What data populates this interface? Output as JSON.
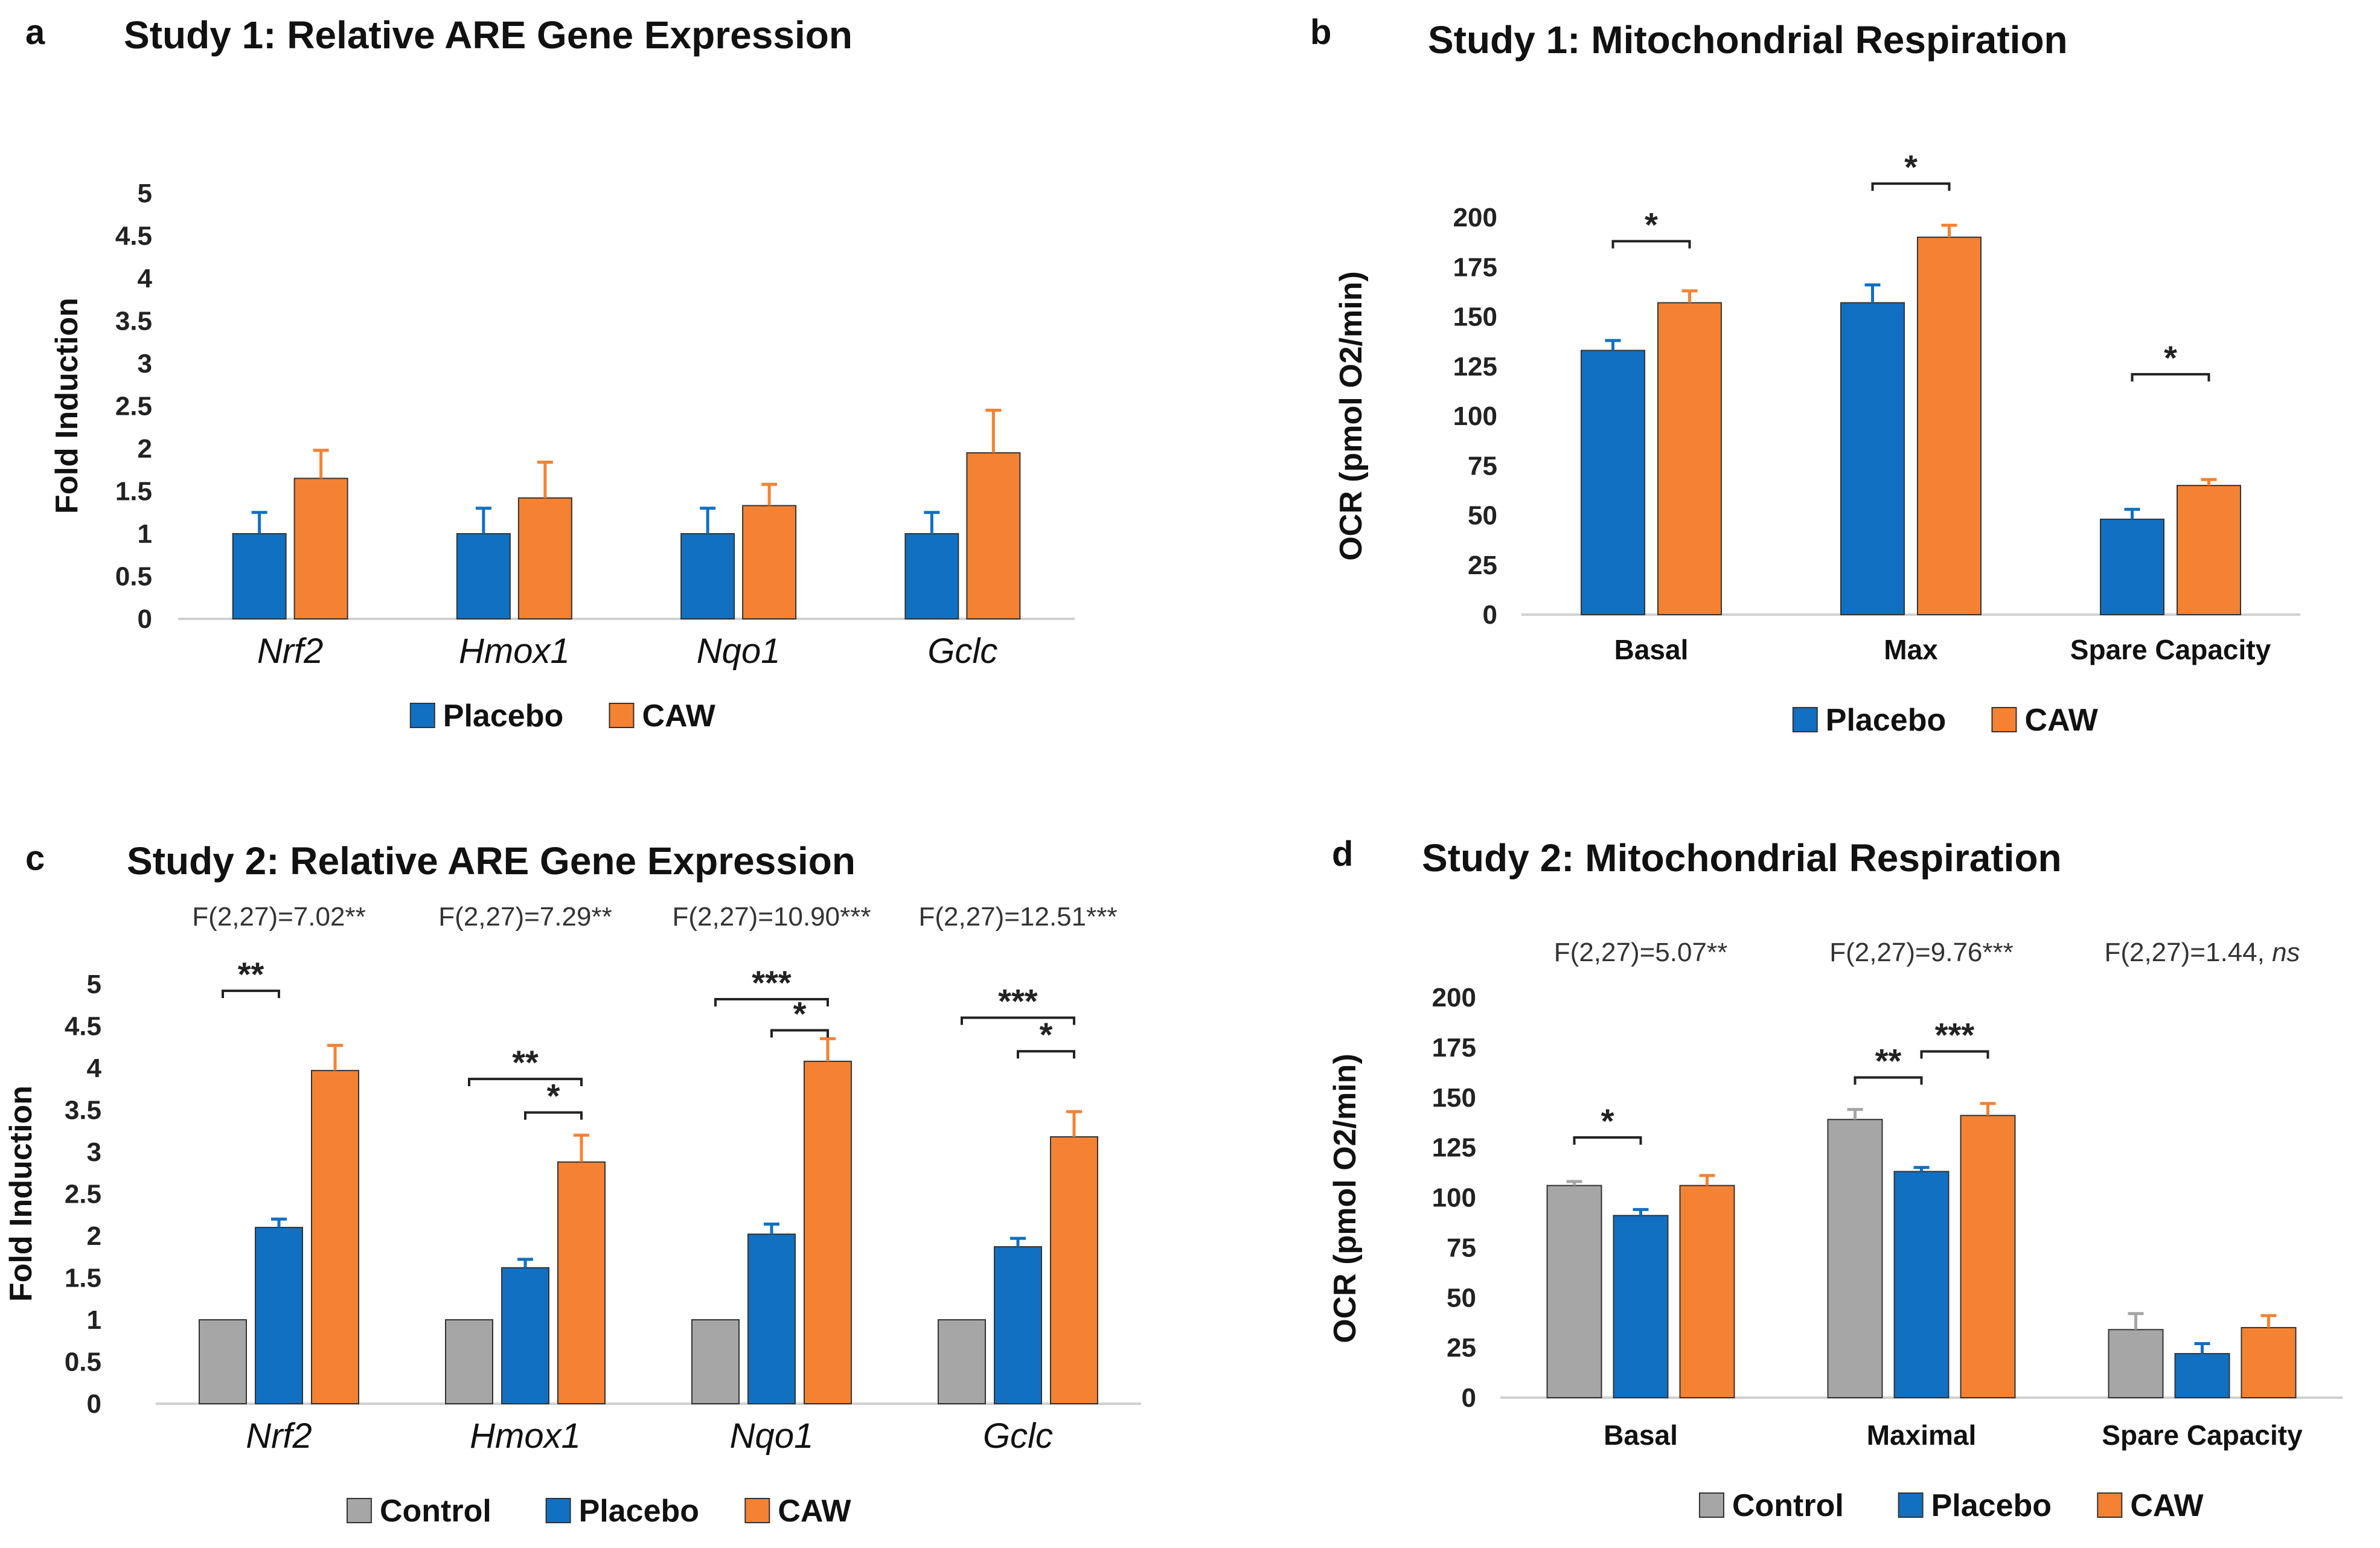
{
  "colors": {
    "control": "#A6A6A6",
    "placebo": "#1170C1",
    "caw": "#F58232",
    "axis": "#D0D0D0",
    "text": "#222222"
  },
  "chart_data": [
    {
      "panel_letter": "a",
      "type": "bar",
      "title": "Study 1: Relative ARE Gene Expression",
      "ylabel": "Fold Induction",
      "xlabel": "",
      "ylim": [
        0,
        5
      ],
      "yticks": [
        "0",
        "0.5",
        "1",
        "1.5",
        "2",
        "2.5",
        "3",
        "3.5",
        "4",
        "4.5",
        "5"
      ],
      "categories": [
        "Nrf2",
        "Hmox1",
        "Nqo1",
        "Gclc"
      ],
      "italic_categories": true,
      "series": [
        {
          "name": "Placebo",
          "color_key": "placebo",
          "values": [
            1.0,
            1.0,
            1.0,
            1.0
          ],
          "errors": [
            0.25,
            0.3,
            0.3,
            0.25
          ]
        },
        {
          "name": "CAW",
          "color_key": "caw",
          "values": [
            1.65,
            1.42,
            1.33,
            1.95
          ],
          "errors": [
            0.33,
            0.42,
            0.25,
            0.5
          ]
        }
      ],
      "stat_labels": [],
      "significance": [],
      "legend": [
        "Placebo",
        "CAW"
      ]
    },
    {
      "panel_letter": "b",
      "type": "bar",
      "title": "Study 1: Mitochondrial Respiration",
      "ylabel": "OCR (pmol O2/min)",
      "xlabel": "",
      "ylim": [
        0,
        200
      ],
      "yticks": [
        "0",
        "25",
        "50",
        "75",
        "100",
        "125",
        "150",
        "175",
        "200"
      ],
      "categories": [
        "Basal",
        "Max",
        "Spare Capacity"
      ],
      "italic_categories": false,
      "series": [
        {
          "name": "Placebo",
          "color_key": "placebo",
          "values": [
            133,
            157,
            48
          ],
          "errors": [
            5,
            9,
            5
          ]
        },
        {
          "name": "CAW",
          "color_key": "caw",
          "values": [
            157,
            190,
            65
          ],
          "errors": [
            6,
            6,
            3
          ]
        }
      ],
      "stat_labels": [],
      "significance": [
        {
          "category": 0,
          "from": 0,
          "to": 1,
          "level": 188,
          "label": "*"
        },
        {
          "category": 1,
          "from": 0,
          "to": 1,
          "level": 217,
          "label": "*"
        },
        {
          "category": 2,
          "from": 0,
          "to": 1,
          "level": 121,
          "label": "*"
        }
      ],
      "legend": [
        "Placebo",
        "CAW"
      ]
    },
    {
      "panel_letter": "c",
      "type": "bar",
      "title": "Study 2: Relative ARE Gene Expression",
      "ylabel": "Fold Induction",
      "xlabel": "",
      "ylim": [
        0,
        5
      ],
      "yticks": [
        "0",
        "0.5",
        "1",
        "1.5",
        "2",
        "2.5",
        "3",
        "3.5",
        "4",
        "4.5",
        "5"
      ],
      "categories": [
        "Nrf2",
        "Hmox1",
        "Nqo1",
        "Gclc"
      ],
      "italic_categories": true,
      "series": [
        {
          "name": "Control",
          "color_key": "control",
          "values": [
            1.0,
            1.0,
            1.0,
            1.0
          ],
          "errors": [
            0,
            0,
            0,
            0
          ]
        },
        {
          "name": "Placebo",
          "color_key": "placebo",
          "values": [
            2.1,
            1.62,
            2.02,
            1.87
          ],
          "errors": [
            0.1,
            0.1,
            0.12,
            0.1
          ]
        },
        {
          "name": "CAW",
          "color_key": "caw",
          "values": [
            3.97,
            2.88,
            4.08,
            3.18
          ],
          "errors": [
            0.3,
            0.32,
            0.27,
            0.3
          ]
        }
      ],
      "stat_labels": [
        {
          "main": "F(2,27)=7.02",
          "stars": "**",
          "italic_stars": false
        },
        {
          "main": "F(2,27)=7.29",
          "stars": "**",
          "italic_stars": false
        },
        {
          "main": "F(2,27)=10.90",
          "stars": "***",
          "italic_stars": false
        },
        {
          "main": "F(2,27)=12.51",
          "stars": "***",
          "italic_stars": false
        }
      ],
      "significance": [
        {
          "category": 0,
          "from": 0,
          "to": 1,
          "level": 4.92,
          "label": "**"
        },
        {
          "category": 1,
          "from": 0,
          "to": 2,
          "level": 3.87,
          "label": "**"
        },
        {
          "category": 1,
          "from": 1,
          "to": 2,
          "level": 3.47,
          "label": "*"
        },
        {
          "category": 2,
          "from": 0,
          "to": 2,
          "level": 4.82,
          "label": "***"
        },
        {
          "category": 2,
          "from": 1,
          "to": 2,
          "level": 4.45,
          "label": "*"
        },
        {
          "category": 3,
          "from": 0,
          "to": 2,
          "level": 4.6,
          "label": "***"
        },
        {
          "category": 3,
          "from": 1,
          "to": 2,
          "level": 4.2,
          "label": "*"
        }
      ],
      "legend": [
        "Control",
        "Placebo",
        "CAW"
      ]
    },
    {
      "panel_letter": "d",
      "type": "bar",
      "title": "Study 2: Mitochondrial Respiration",
      "ylabel": "OCR (pmol O2/min)",
      "xlabel": "",
      "ylim": [
        0,
        200
      ],
      "yticks": [
        "0",
        "25",
        "50",
        "75",
        "100",
        "125",
        "150",
        "175",
        "200"
      ],
      "categories": [
        "Basal",
        "Maximal",
        "Spare Capacity"
      ],
      "italic_categories": false,
      "series": [
        {
          "name": "Control",
          "color_key": "control",
          "values": [
            106,
            139,
            34
          ],
          "errors": [
            2,
            5,
            8
          ]
        },
        {
          "name": "Placebo",
          "color_key": "placebo",
          "values": [
            91,
            113,
            22
          ],
          "errors": [
            3,
            2,
            5
          ]
        },
        {
          "name": "CAW",
          "color_key": "caw",
          "values": [
            106,
            141,
            35
          ],
          "errors": [
            5,
            6,
            6
          ]
        }
      ],
      "stat_labels": [
        {
          "main": "F(2,27)=5.07",
          "stars": "**",
          "italic_stars": false
        },
        {
          "main": "F(2,27)=9.76",
          "stars": "***",
          "italic_stars": false
        },
        {
          "main": "F(2,27)=1.44, ",
          "stars": "ns",
          "italic_stars": true
        }
      ],
      "significance": [
        {
          "category": 0,
          "from": 0,
          "to": 1,
          "level": 130,
          "label": "*"
        },
        {
          "category": 1,
          "from": 0,
          "to": 1,
          "level": 160,
          "label": "**"
        },
        {
          "category": 1,
          "from": 1,
          "to": 2,
          "level": 173,
          "label": "***"
        }
      ],
      "legend": [
        "Control",
        "Placebo",
        "CAW"
      ]
    }
  ]
}
